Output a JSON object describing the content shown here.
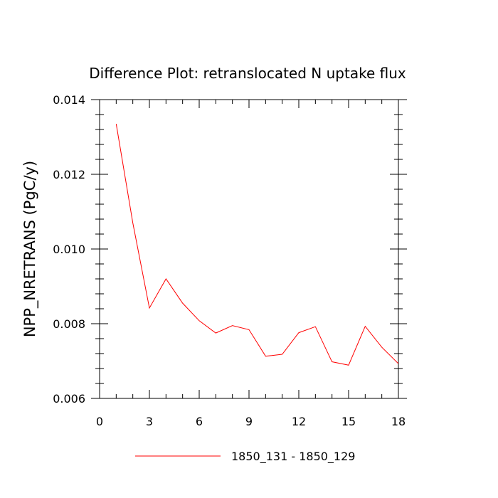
{
  "chart_data": {
    "type": "line",
    "title": "Difference Plot: retranslocated N uptake flux",
    "xlabel": "",
    "ylabel": "NPP_NRETRANS  (PgC/y)",
    "xlim": [
      0,
      18
    ],
    "ylim": [
      0.006,
      0.014
    ],
    "x_ticks": [
      0,
      3,
      6,
      9,
      12,
      15,
      18
    ],
    "x_tick_labels": [
      "0",
      "3",
      "6",
      "9",
      "12",
      "15",
      "18"
    ],
    "y_ticks": [
      0.006,
      0.008,
      0.01,
      0.012,
      0.014
    ],
    "y_tick_labels": [
      "0.006",
      "0.008",
      "0.010",
      "0.012",
      "0.014"
    ],
    "grid": false,
    "legend_position": "bottom",
    "series": [
      {
        "name": "1850_131 - 1850_129",
        "color": "#ff0000",
        "x": [
          1,
          2,
          3,
          4,
          5,
          6,
          7,
          8,
          9,
          10,
          11,
          12,
          13,
          14,
          15,
          16,
          17,
          18
        ],
        "y": [
          0.01335,
          0.0107,
          0.00842,
          0.0092,
          0.00855,
          0.00808,
          0.00775,
          0.00795,
          0.00784,
          0.00713,
          0.00718,
          0.00776,
          0.00792,
          0.00698,
          0.00689,
          0.00793,
          0.00737,
          0.00693
        ]
      }
    ]
  }
}
